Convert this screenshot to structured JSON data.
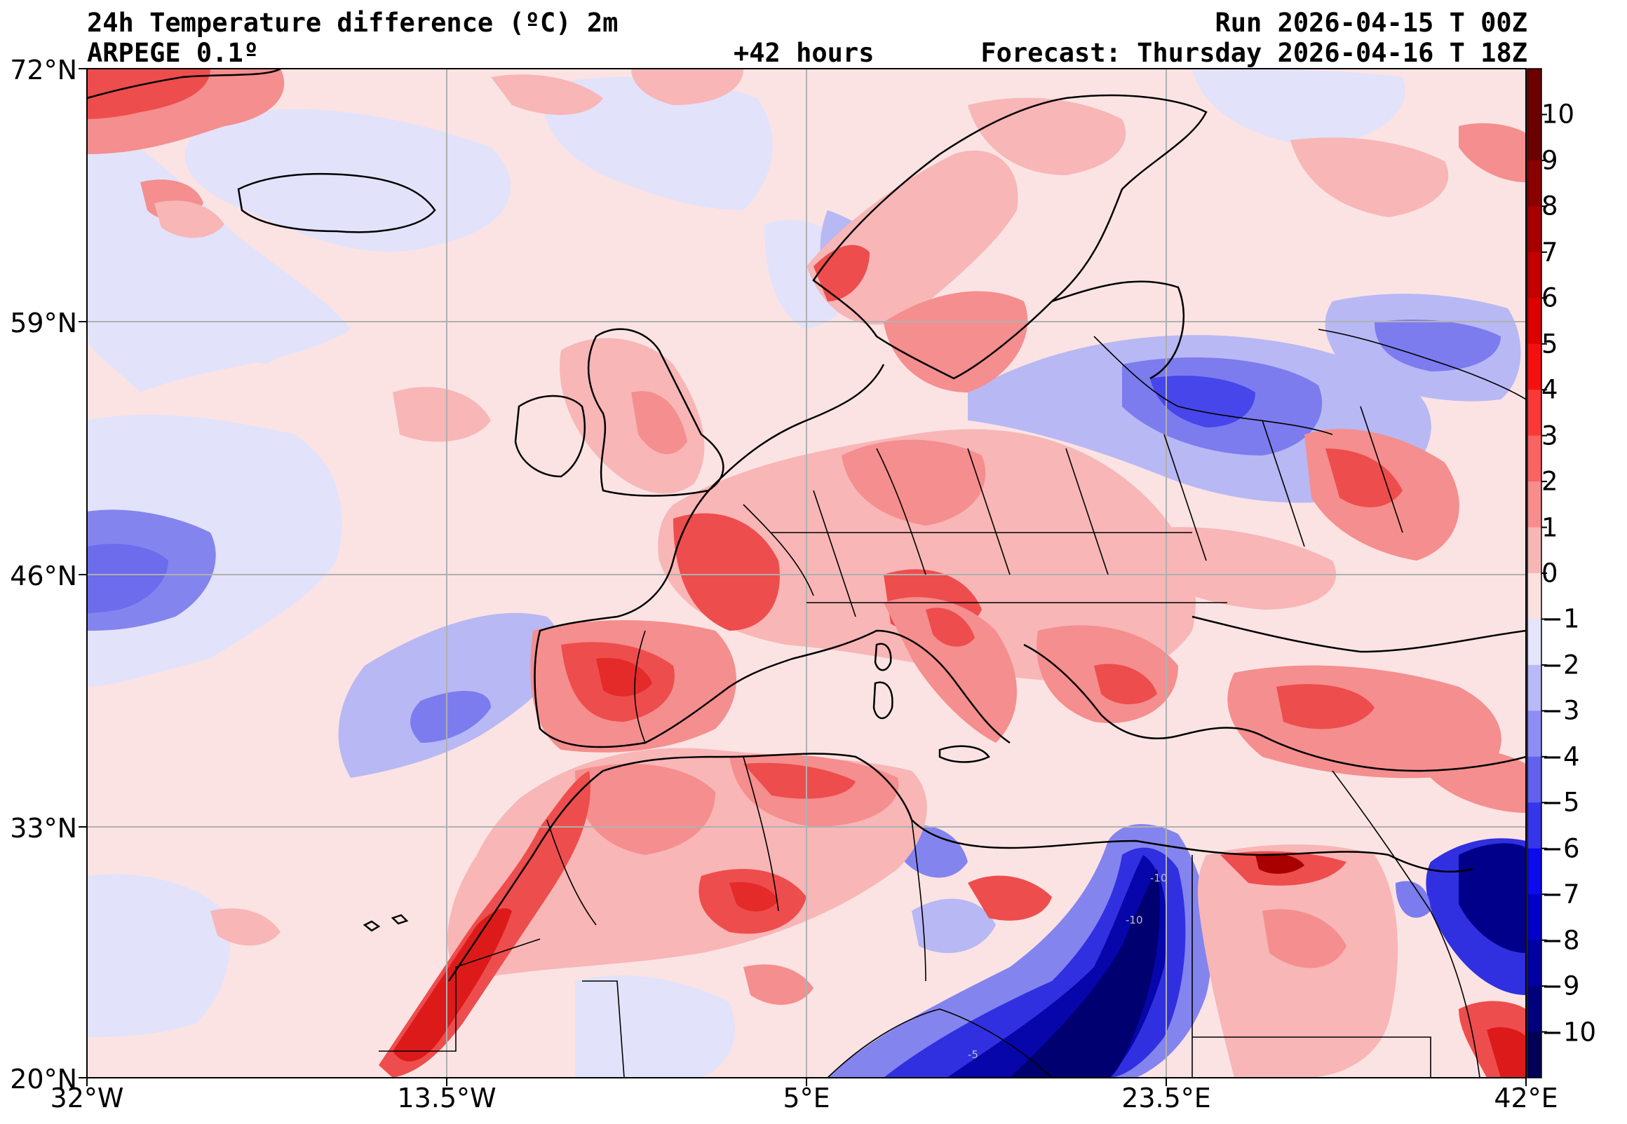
{
  "header": {
    "title_left": "24h Temperature difference (ºC) 2m",
    "model": "ARPEGE 0.1º",
    "run": "Run 2026-04-15 T 00Z",
    "lead": "+42 hours",
    "forecast": "Forecast: Thursday 2026-04-16 T 18Z"
  },
  "map": {
    "lat_ticks": [
      "72°N",
      "59°N",
      "46°N",
      "33°N",
      "20°N"
    ],
    "lon_ticks": [
      "32°W",
      "13.5°W",
      "5°E",
      "23.5°E",
      "42°E"
    ],
    "contour_labels": [
      "-10",
      "-10",
      "-5"
    ]
  },
  "colorbar": {
    "ticks": [
      "10",
      "9",
      "8",
      "7",
      "6",
      "5",
      "4",
      "3",
      "2",
      "1",
      "0",
      "−1",
      "−2",
      "−3",
      "−4",
      "−5",
      "−6",
      "−7",
      "−8",
      "−9",
      "−10"
    ],
    "colors": [
      "#6b0000",
      "#8b0000",
      "#a80000",
      "#c40000",
      "#dd0000",
      "#f51010",
      "#fb3838",
      "#fb6262",
      "#f98c8c",
      "#f7b6b6",
      "#fbe0e0",
      "#e4e4fb",
      "#b9b9f7",
      "#8d8df3",
      "#6161ee",
      "#3535ea",
      "#0b0bee",
      "#0000c9",
      "#0000a3",
      "#00007c",
      "#000055"
    ]
  },
  "palette": {
    "ocean_base": "#fbe3e3",
    "neg_light": "#e2e2fb",
    "neg_mid": "#b8b8f4",
    "neg_strong": "#7c7cee",
    "pos_light": "#f8b6b6",
    "pos_mid": "#f58e8e",
    "pos_strong": "#ee4d4d",
    "deep_blue": "#00009a"
  }
}
